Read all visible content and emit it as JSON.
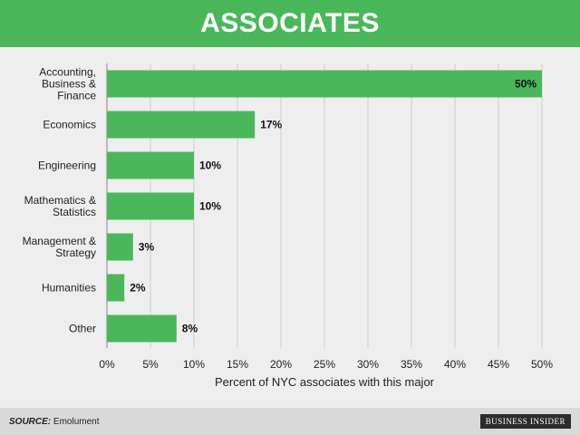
{
  "header": {
    "title": "ASSOCIATES"
  },
  "footer": {
    "source_label": "SOURCE:",
    "source_text": "Emolument",
    "brand": "BUSINESS INSIDER"
  },
  "colors": {
    "header_bg": "#4ab85a",
    "bar": "#4ab85a",
    "plot_bg": "#eeeeee"
  },
  "chart_data": {
    "type": "bar",
    "orientation": "horizontal",
    "title": "ASSOCIATES",
    "xlabel": "Percent of NYC associates with this major",
    "ylabel": "",
    "xlim": [
      0,
      50
    ],
    "x_ticks": [
      "0%",
      "5%",
      "10%",
      "15%",
      "20%",
      "25%",
      "30%",
      "35%",
      "40%",
      "45%",
      "50%"
    ],
    "grid": true,
    "categories": [
      [
        "Accounting,",
        "Business &",
        "Finance"
      ],
      [
        "Economics"
      ],
      [
        "Engineering"
      ],
      [
        "Mathematics &",
        "Statistics"
      ],
      [
        "Management &",
        "Strategy"
      ],
      [
        "Humanities"
      ],
      [
        "Other"
      ]
    ],
    "values": [
      50,
      17,
      10,
      10,
      3,
      2,
      8
    ],
    "value_labels": [
      "50%",
      "17%",
      "10%",
      "10%",
      "3%",
      "2%",
      "8%"
    ]
  }
}
